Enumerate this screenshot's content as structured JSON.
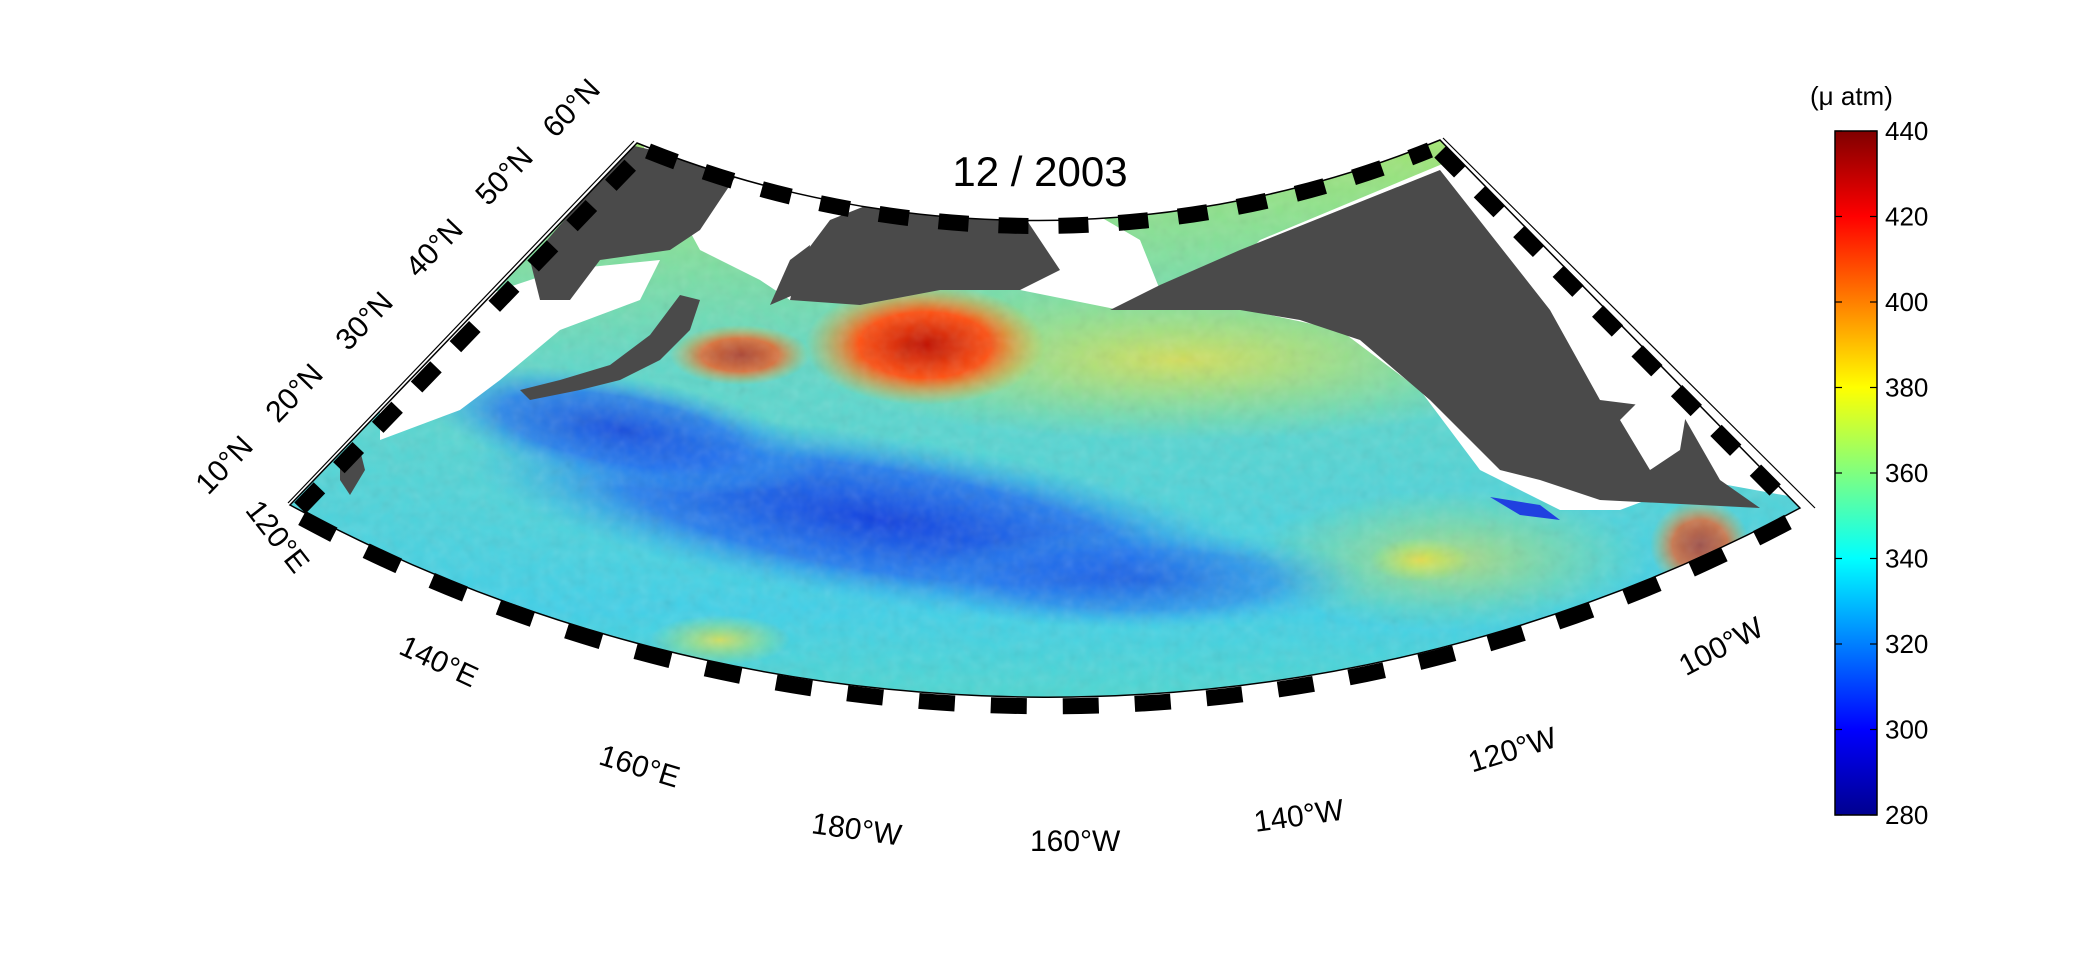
{
  "title": "12 / 2003",
  "colorbar": {
    "unit": "(μ atm)",
    "min": 280,
    "max": 440,
    "ticks": [
      "440",
      "420",
      "400",
      "380",
      "360",
      "340",
      "320",
      "300",
      "280"
    ],
    "colormap": "jet"
  },
  "map": {
    "projection": "conic",
    "lon_range": [
      "120°E",
      "100°W"
    ],
    "lat_range": [
      "10°N",
      "60°N"
    ],
    "variable": "surface ocean pCO2",
    "land_color": "#4a4a4a",
    "nodata_color": "#ffffff",
    "lat_labels": [
      "60°N",
      "50°N",
      "40°N",
      "30°N",
      "20°N",
      "10°N"
    ],
    "lon_labels": [
      "120°E",
      "140°E",
      "160°E",
      "180°W",
      "160°W",
      "140°W",
      "120°W",
      "100°W"
    ]
  }
}
